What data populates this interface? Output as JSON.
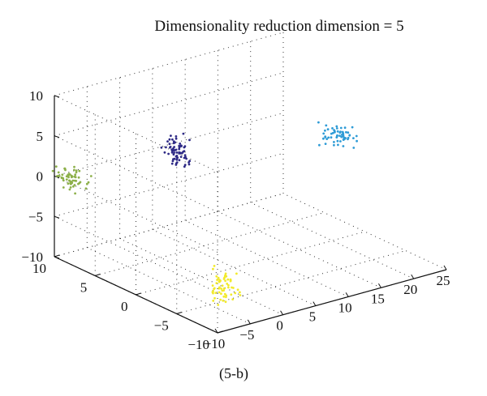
{
  "chart_data": {
    "type": "scatter",
    "projection": "3d",
    "title": "Dimensionality reduction dimension = 5",
    "caption": "(5-b)",
    "xlabel": "",
    "ylabel": "",
    "zlabel": "",
    "xlim": [
      -10,
      25
    ],
    "ylim": [
      -10,
      10
    ],
    "zlim": [
      -10,
      10
    ],
    "xticks": [
      -10,
      -5,
      0,
      5,
      10,
      15,
      20,
      25
    ],
    "yticks": [
      -10,
      -5,
      0,
      5,
      10
    ],
    "zticks": [
      -10,
      -5,
      0,
      5,
      10
    ],
    "grid": true,
    "marker_size": 1.4,
    "series": [
      {
        "color": "#8db04a",
        "center": [
          -9,
          9,
          0
        ],
        "spread": [
          1.2,
          1.2,
          0.9
        ],
        "count": 60
      },
      {
        "color": "#2e2a86",
        "center": [
          0,
          3,
          4
        ],
        "spread": [
          0.9,
          0.9,
          1.2
        ],
        "count": 70
      },
      {
        "color": "#2e9bd6",
        "center": [
          22,
          1,
          2
        ],
        "spread": [
          1.5,
          1.2,
          0.8
        ],
        "count": 60
      },
      {
        "color": "#f2ea2c",
        "center": [
          -3,
          -5,
          -8
        ],
        "spread": [
          0.8,
          0.8,
          1.5
        ],
        "count": 60
      }
    ]
  }
}
